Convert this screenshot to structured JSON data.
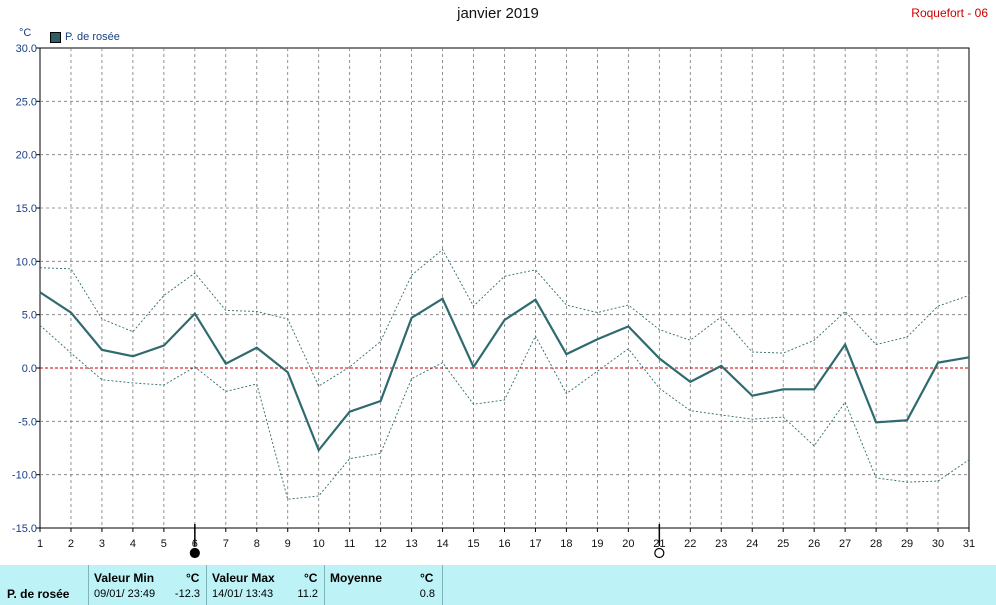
{
  "title": "janvier 2019",
  "station": "Roquefort - 06",
  "unit": "°C",
  "legend": {
    "label": "P. de rosée",
    "color": "#2f5f66"
  },
  "chart_data": {
    "type": "line",
    "title": "janvier 2019",
    "ylabel": "°C",
    "ylim": [
      -15,
      30
    ],
    "yticks": [
      "30.0",
      "25.0",
      "20.0",
      "15.0",
      "10.0",
      "5.0",
      "0.0",
      "-5.0",
      "-10.0",
      "-15.0"
    ],
    "ytick_values": [
      30,
      25,
      20,
      15,
      10,
      5,
      0,
      -5,
      -10,
      -15
    ],
    "x": [
      1,
      2,
      3,
      4,
      5,
      6,
      7,
      8,
      9,
      10,
      11,
      12,
      13,
      14,
      15,
      16,
      17,
      18,
      19,
      20,
      21,
      22,
      23,
      24,
      25,
      26,
      27,
      28,
      29,
      30,
      31
    ],
    "grid": true,
    "legend_position": "top-left",
    "series": [
      {
        "name": "P. de rosée",
        "role": "mean",
        "color": "#2f6b6e",
        "values": [
          7.1,
          5.2,
          1.7,
          1.1,
          2.1,
          5.1,
          0.4,
          1.9,
          -0.4,
          -7.7,
          -4.1,
          -3.1,
          4.7,
          6.5,
          0.1,
          4.5,
          6.4,
          1.3,
          2.7,
          3.9,
          0.9,
          -1.3,
          0.2,
          -2.6,
          -2.0,
          -2.0,
          2.2,
          -5.1,
          -4.9,
          0.5,
          1.0
        ]
      },
      {
        "role": "max",
        "color": "#2f6b6e",
        "values": [
          9.4,
          9.3,
          4.6,
          3.4,
          6.8,
          8.9,
          5.4,
          5.3,
          4.6,
          -1.7,
          0.1,
          2.5,
          8.7,
          11.1,
          5.8,
          8.6,
          9.2,
          5.9,
          5.2,
          5.9,
          3.6,
          2.6,
          4.8,
          1.5,
          1.4,
          2.6,
          5.3,
          2.2,
          2.9,
          5.8,
          6.8
        ]
      },
      {
        "role": "min",
        "color": "#2f6b6e",
        "values": [
          4.0,
          1.4,
          -1.1,
          -1.4,
          -1.6,
          0.1,
          -2.2,
          -1.5,
          -12.3,
          -12.0,
          -8.5,
          -8.0,
          -1.0,
          0.5,
          -3.4,
          -3.0,
          3.0,
          -2.4,
          -0.3,
          1.8,
          -1.9,
          -4.0,
          -4.4,
          -4.8,
          -4.6,
          -7.3,
          -3.2,
          -10.3,
          -10.7,
          -10.6,
          -8.6
        ]
      }
    ],
    "zero_line": {
      "value": 0,
      "color": "#cc0000"
    },
    "moon_phases": [
      {
        "day": 6,
        "phase": "new-moon"
      },
      {
        "day": 21,
        "phase": "full-moon"
      }
    ]
  },
  "stats": {
    "row_label": "P. de rosée",
    "min": {
      "header": "Valeur Min",
      "unit": "°C",
      "date": "09/01/  23:49",
      "value": "-12.3"
    },
    "max": {
      "header": "Valeur Max",
      "unit": "°C",
      "date": "14/01/  13:43",
      "value": "11.2"
    },
    "mean": {
      "header": "Moyenne",
      "unit": "°C",
      "value": "0.8"
    }
  }
}
